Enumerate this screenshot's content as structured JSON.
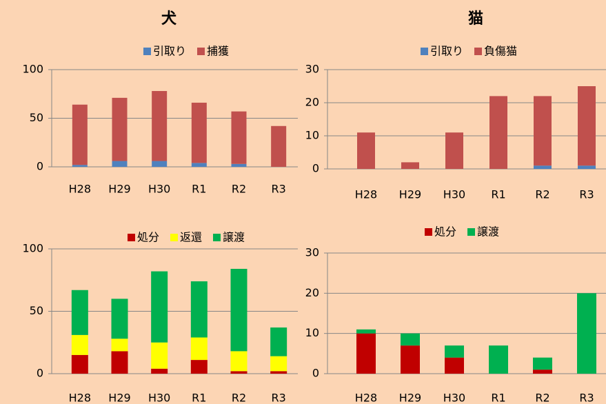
{
  "chart_data": [
    {
      "type": "bar",
      "stacked": true,
      "title": "犬",
      "categories": [
        "H28",
        "H29",
        "H30",
        "R1",
        "R2",
        "R3"
      ],
      "series": [
        {
          "name": "引取り",
          "color": "#4f81bd",
          "values": [
            2,
            6,
            6,
            4,
            3,
            0
          ]
        },
        {
          "name": "捕獲",
          "color": "#c0504d",
          "values": [
            62,
            65,
            72,
            62,
            54,
            42
          ]
        }
      ],
      "ylim": [
        0,
        100
      ],
      "yticks": [
        0,
        50,
        100
      ],
      "grid": true,
      "legend": "top"
    },
    {
      "type": "bar",
      "stacked": true,
      "title": "猫",
      "categories": [
        "H28",
        "H29",
        "H30",
        "R1",
        "R2",
        "R3"
      ],
      "series": [
        {
          "name": "引取り",
          "color": "#4f81bd",
          "values": [
            0,
            0,
            0,
            0,
            1,
            1
          ]
        },
        {
          "name": "負傷猫",
          "color": "#c0504d",
          "values": [
            11,
            2,
            11,
            22,
            21,
            24
          ]
        }
      ],
      "ylim": [
        0,
        30
      ],
      "yticks": [
        0,
        10,
        20,
        30
      ],
      "grid": true,
      "legend": "top"
    },
    {
      "type": "bar",
      "stacked": true,
      "categories": [
        "H28",
        "H29",
        "H30",
        "R1",
        "R2",
        "R3"
      ],
      "series": [
        {
          "name": "処分",
          "color": "#c00000",
          "values": [
            15,
            18,
            4,
            11,
            2,
            2
          ]
        },
        {
          "name": "返還",
          "color": "#ffff00",
          "values": [
            16,
            10,
            21,
            18,
            16,
            12
          ]
        },
        {
          "name": "譲渡",
          "color": "#00b050",
          "values": [
            36,
            32,
            57,
            45,
            66,
            23
          ]
        }
      ],
      "ylim": [
        0,
        100
      ],
      "yticks": [
        0,
        50,
        100
      ],
      "grid": true,
      "legend": "top"
    },
    {
      "type": "bar",
      "stacked": true,
      "categories": [
        "H28",
        "H29",
        "H30",
        "R1",
        "R2",
        "R3"
      ],
      "series": [
        {
          "name": "処分",
          "color": "#c00000",
          "values": [
            10,
            7,
            4,
            0,
            1,
            0
          ]
        },
        {
          "name": "譲渡",
          "color": "#00b050",
          "values": [
            1,
            3,
            3,
            7,
            3,
            20
          ]
        }
      ],
      "ylim": [
        0,
        30
      ],
      "yticks": [
        0,
        10,
        20,
        30
      ],
      "grid": true,
      "legend": "top"
    }
  ]
}
